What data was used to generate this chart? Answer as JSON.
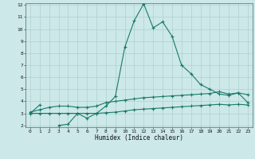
{
  "xlabel": "Humidex (Indice chaleur)",
  "background_color": "#cce8e8",
  "grid_color": "#b0d0d0",
  "line_color": "#1a7a6a",
  "x_values": [
    0,
    1,
    2,
    3,
    4,
    5,
    6,
    7,
    8,
    9,
    10,
    11,
    12,
    13,
    14,
    15,
    16,
    17,
    18,
    19,
    20,
    21,
    22,
    23
  ],
  "line1": [
    3.0,
    3.7,
    null,
    2.0,
    2.1,
    3.0,
    2.6,
    3.0,
    3.6,
    4.4,
    8.5,
    10.7,
    12.1,
    10.1,
    10.6,
    9.4,
    7.0,
    6.3,
    5.4,
    5.0,
    4.6,
    4.5,
    4.7,
    3.9
  ],
  "line2": [
    3.1,
    3.3,
    3.5,
    3.6,
    3.6,
    3.5,
    3.5,
    3.6,
    3.9,
    4.0,
    4.1,
    4.2,
    4.3,
    4.35,
    4.4,
    4.45,
    4.5,
    4.55,
    4.6,
    4.65,
    4.8,
    4.6,
    4.7,
    4.55
  ],
  "line3": [
    3.0,
    3.0,
    3.0,
    3.0,
    3.0,
    3.0,
    3.0,
    3.0,
    3.05,
    3.1,
    3.2,
    3.3,
    3.35,
    3.4,
    3.45,
    3.5,
    3.55,
    3.6,
    3.65,
    3.7,
    3.75,
    3.7,
    3.75,
    3.7
  ],
  "ylim_min": 2,
  "ylim_max": 12,
  "xlim_min": 0,
  "xlim_max": 23,
  "yticks": [
    2,
    3,
    4,
    5,
    6,
    7,
    8,
    9,
    10,
    11,
    12
  ],
  "xticks": [
    0,
    1,
    2,
    3,
    4,
    5,
    6,
    7,
    8,
    9,
    10,
    11,
    12,
    13,
    14,
    15,
    16,
    17,
    18,
    19,
    20,
    21,
    22,
    23
  ]
}
